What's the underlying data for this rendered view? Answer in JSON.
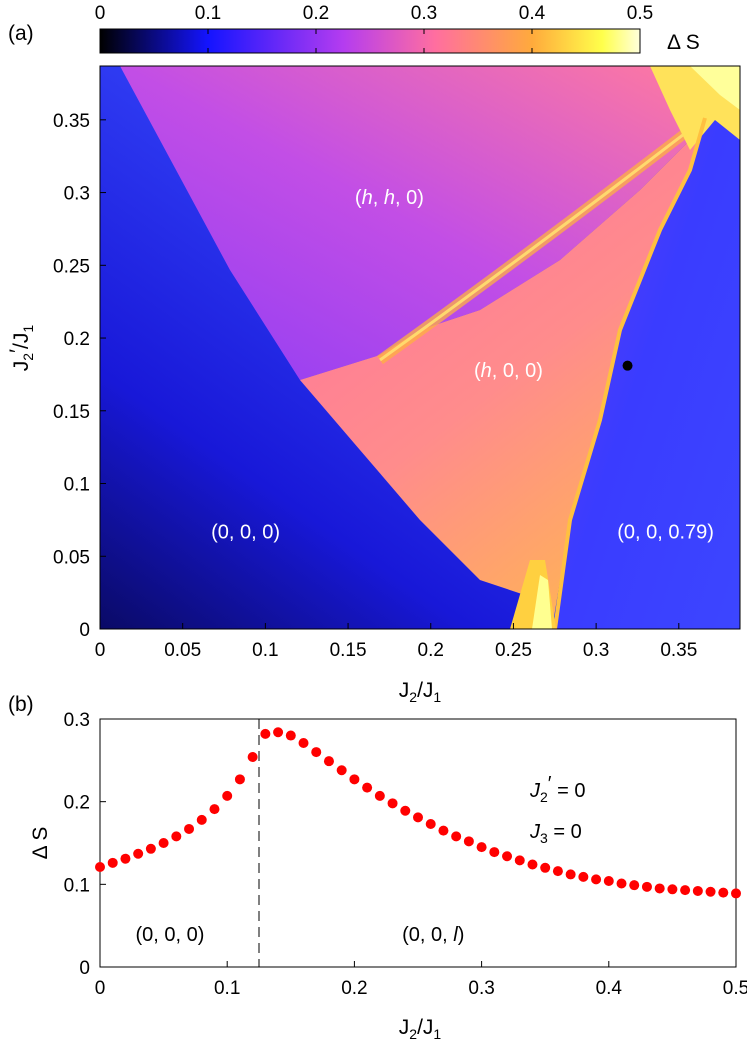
{
  "chart_data": [
    {
      "panel_label": "(a)",
      "type": "heatmap",
      "xlabel": "J_2/J_1",
      "ylabel": "J_2'/J_1",
      "xlim": [
        0,
        0.387
      ],
      "ylim": [
        0,
        0.387
      ],
      "xticks": [
        0,
        0.05,
        0.1,
        0.15,
        0.2,
        0.25,
        0.3,
        0.35
      ],
      "xtick_labels": [
        "0",
        "0.05",
        "0.1",
        "0.15",
        "0.2",
        "0.25",
        "0.3",
        "0.35"
      ],
      "yticks": [
        0,
        0.05,
        0.1,
        0.15,
        0.2,
        0.25,
        0.3,
        0.35
      ],
      "ytick_labels": [
        "0",
        "0.05",
        "0.1",
        "0.15",
        "0.2",
        "0.25",
        "0.3",
        "0.35"
      ],
      "colorbar": {
        "label": "Δ S",
        "range": [
          0,
          0.5
        ],
        "ticks": [
          0,
          0.1,
          0.2,
          0.3,
          0.4,
          0.5
        ],
        "tick_labels": [
          "0",
          "0.1",
          "0.2",
          "0.3",
          "0.4",
          "0.5"
        ],
        "colormap": [
          "#000000",
          "#1414ff",
          "#b43cf0",
          "#ff6ea0",
          "#ffaa3c",
          "#ffff4b",
          "#ffffdc"
        ]
      },
      "regions": [
        {
          "label": "(0, 0, 0)",
          "x": 0.088,
          "y": 0.067
        },
        {
          "label": "(h, h, 0)",
          "x": 0.175,
          "y": 0.297
        },
        {
          "label": "(h, 0, 0)",
          "x": 0.247,
          "y": 0.178
        },
        {
          "label": "(0, 0, 0.79)",
          "x": 0.342,
          "y": 0.067
        }
      ],
      "marker_point": {
        "x": 0.319,
        "y": 0.181
      }
    },
    {
      "panel_label": "(b)",
      "type": "scatter",
      "xlabel": "J_2/J_1",
      "ylabel": "Δ S",
      "xlim": [
        0,
        0.5
      ],
      "ylim": [
        0,
        0.3
      ],
      "xticks": [
        0,
        0.1,
        0.2,
        0.3,
        0.4,
        0.5
      ],
      "xtick_labels": [
        "0",
        "0.1",
        "0.2",
        "0.3",
        "0.4",
        "0.5"
      ],
      "yticks": [
        0,
        0.1,
        0.2,
        0.3
      ],
      "ytick_labels": [
        "0",
        "0.1",
        "0.2",
        "0.3"
      ],
      "series": [
        {
          "name": "ΔS",
          "color": "#ff0000",
          "x": [
            0,
            0.01,
            0.02,
            0.03,
            0.04,
            0.05,
            0.06,
            0.07,
            0.08,
            0.09,
            0.1,
            0.11,
            0.12,
            0.13,
            0.14,
            0.15,
            0.16,
            0.17,
            0.18,
            0.19,
            0.2,
            0.21,
            0.22,
            0.23,
            0.24,
            0.25,
            0.26,
            0.27,
            0.28,
            0.29,
            0.3,
            0.31,
            0.32,
            0.33,
            0.34,
            0.35,
            0.36,
            0.37,
            0.38,
            0.39,
            0.4,
            0.41,
            0.42,
            0.43,
            0.44,
            0.45,
            0.46,
            0.47,
            0.48,
            0.49,
            0.5
          ],
          "y": [
            0.121,
            0.126,
            0.131,
            0.137,
            0.143,
            0.15,
            0.158,
            0.167,
            0.178,
            0.191,
            0.207,
            0.227,
            0.254,
            0.282,
            0.284,
            0.28,
            0.271,
            0.26,
            0.249,
            0.238,
            0.227,
            0.217,
            0.207,
            0.198,
            0.189,
            0.181,
            0.173,
            0.165,
            0.158,
            0.152,
            0.145,
            0.139,
            0.134,
            0.129,
            0.124,
            0.12,
            0.116,
            0.112,
            0.109,
            0.106,
            0.104,
            0.101,
            0.099,
            0.097,
            0.095,
            0.094,
            0.093,
            0.092,
            0.091,
            0.09,
            0.089
          ]
        }
      ],
      "transition_x": 0.125,
      "region_labels": [
        {
          "text": "(0, 0, 0)",
          "x": 0.055,
          "y": 0.04
        },
        {
          "text": "(0, 0, l)",
          "x": 0.262,
          "y": 0.04
        }
      ],
      "legend_text": [
        "J_2' = 0",
        "J_3 = 0"
      ]
    }
  ]
}
